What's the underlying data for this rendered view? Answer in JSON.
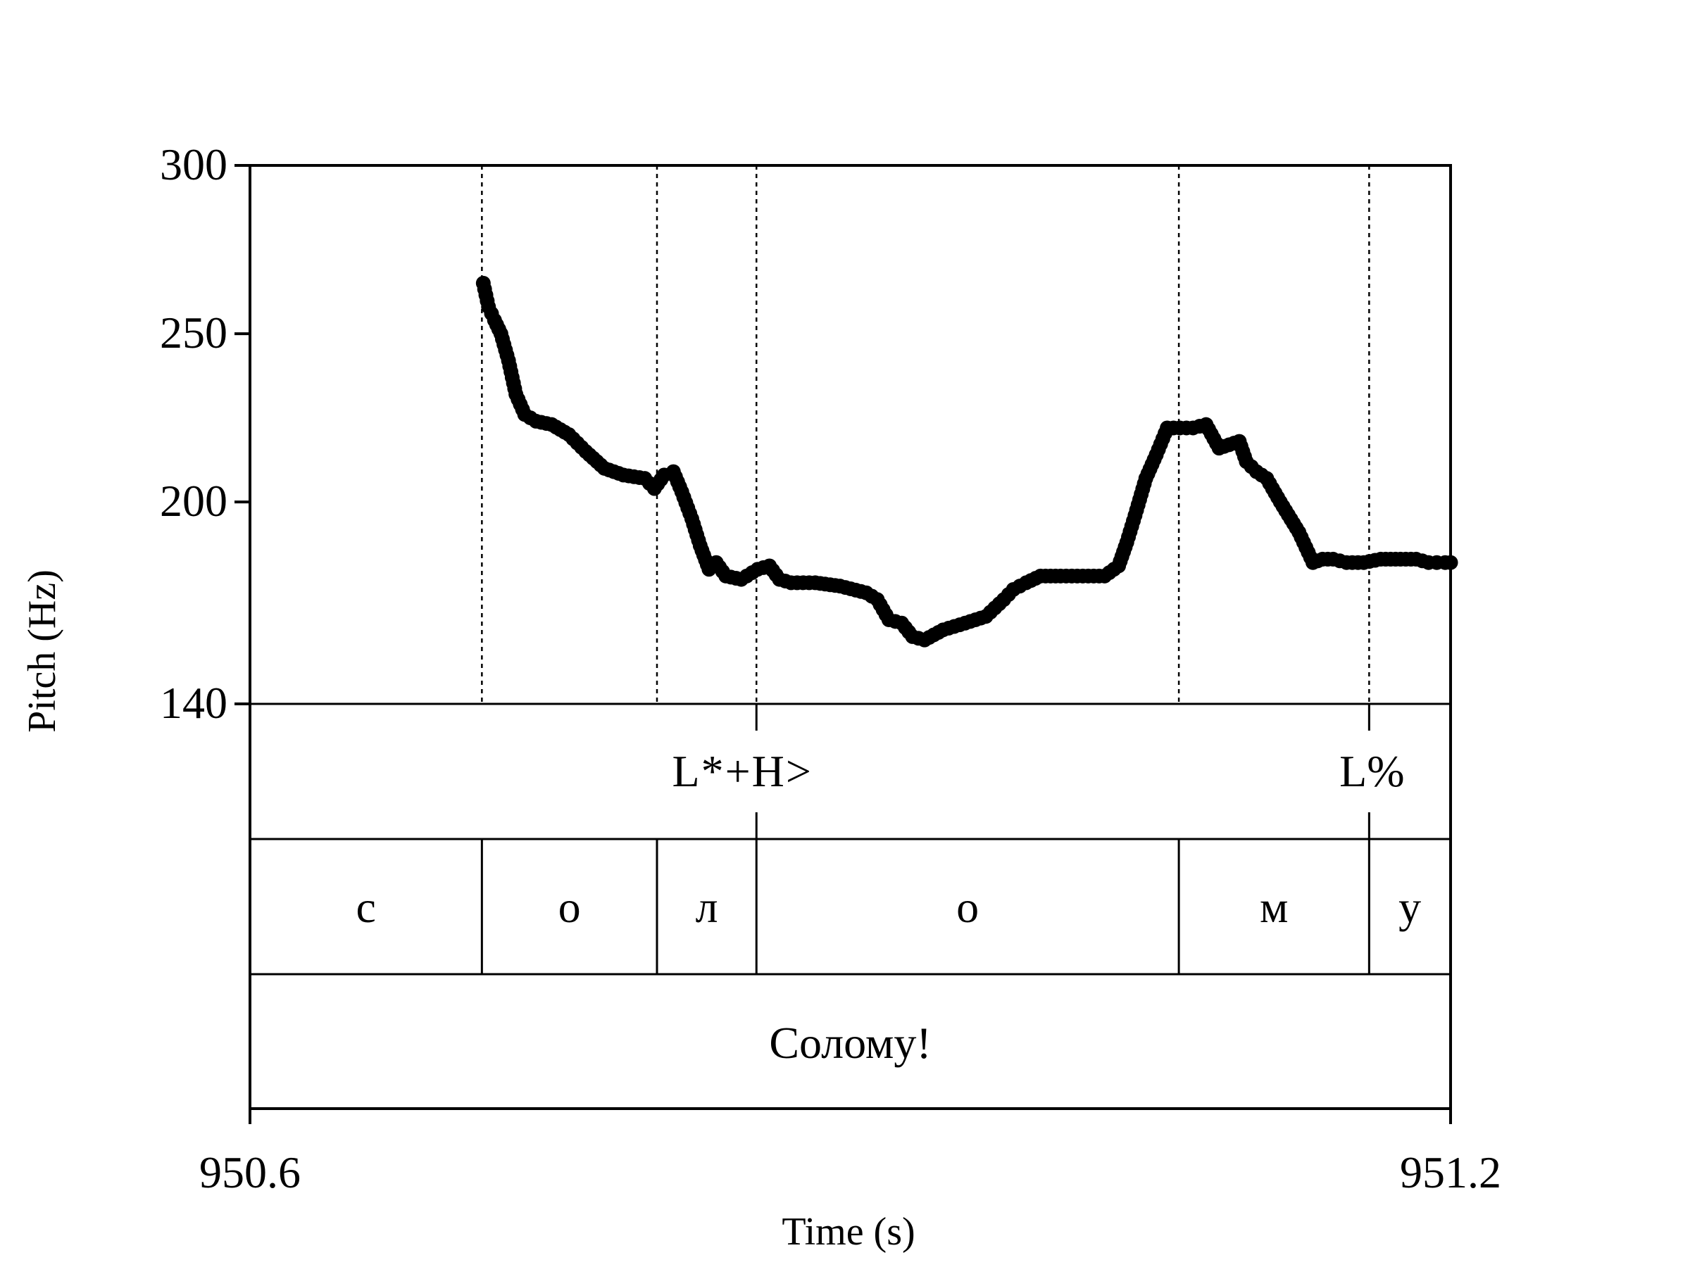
{
  "chart_data": {
    "type": "scatter",
    "xlabel": "Time (s)",
    "ylabel": "Pitch (Hz)",
    "xlim": [
      950.6,
      951.2
    ],
    "ylim": [
      140,
      300
    ],
    "x_tick_labels": [
      "950.6",
      "951.2"
    ],
    "y_tick_labels": [
      "140",
      "200",
      "250",
      "300"
    ],
    "y_ticks": [
      140,
      200,
      250,
      300
    ],
    "boundaries": [
      950.7159,
      950.8034,
      950.8531,
      951.0642,
      951.1593
    ],
    "tiers": {
      "tones": [
        {
          "label": "L*+H>",
          "time": 950.8531
        },
        {
          "label": "L%",
          "time": 951.1593
        }
      ],
      "segments": [
        {
          "label": "с",
          "start": 950.6,
          "end": 950.7159
        },
        {
          "label": "о",
          "start": 950.7159,
          "end": 950.8034
        },
        {
          "label": "л",
          "start": 950.8034,
          "end": 950.8531
        },
        {
          "label": "о",
          "start": 950.8531,
          "end": 951.0642
        },
        {
          "label": "м",
          "start": 951.0642,
          "end": 951.1593
        },
        {
          "label": "у",
          "start": 951.1593,
          "end": 951.2
        }
      ],
      "words": [
        {
          "label": "Солому!",
          "start": 950.6,
          "end": 951.2
        }
      ]
    },
    "series": [
      {
        "x": [
          950.7166,
          950.7192,
          950.7222,
          950.7254,
          950.7292,
          950.7329,
          950.7373,
          950.7429,
          950.7508,
          950.7594,
          950.7678,
          950.7771,
          950.7866,
          950.7973,
          950.8021,
          950.807,
          950.8116,
          950.8158,
          950.8208,
          950.825,
          950.8294,
          950.833,
          950.8378,
          950.8455,
          950.8537,
          950.8596,
          950.8646,
          950.8704,
          950.8825,
          950.8949,
          950.908,
          950.9135,
          950.9193,
          950.9257,
          950.9311,
          950.9371,
          950.9464,
          950.9574,
          950.9678,
          950.9767,
          950.9815,
          950.9879,
          950.9951,
          951.0051,
          951.0162,
          951.0271,
          951.0341,
          951.0382,
          951.0423,
          951.0477,
          951.0529,
          951.0584,
          951.0647,
          951.0713,
          951.0778,
          951.0843,
          951.0944,
          951.0979,
          951.103,
          951.1081,
          951.111,
          951.1149,
          951.1242,
          951.1312,
          951.136,
          951.1413,
          951.148,
          951.1566,
          951.1651,
          951.175,
          951.1828,
          951.189,
          951.1931,
          951.1973,
          951.2
        ],
        "y": [
          265,
          258,
          254,
          250,
          242,
          232,
          226,
          224,
          223,
          220,
          215,
          210,
          208,
          207,
          204,
          208,
          209,
          203,
          195,
          187,
          180,
          182,
          178,
          177,
          180,
          181,
          177,
          176,
          176,
          175,
          173,
          171,
          165,
          164,
          160,
          159,
          162,
          164,
          166,
          171,
          174,
          176,
          178,
          178,
          178,
          178,
          181,
          188,
          196,
          207,
          214,
          222,
          222,
          222,
          223,
          216,
          218,
          212,
          209,
          207,
          204,
          200,
          191,
          182,
          183,
          183,
          182,
          182,
          183,
          183,
          183,
          182,
          182,
          182,
          182
        ]
      }
    ],
    "colors": {
      "points": "#000000",
      "lines": "#000000",
      "background": "#ffffff"
    }
  }
}
